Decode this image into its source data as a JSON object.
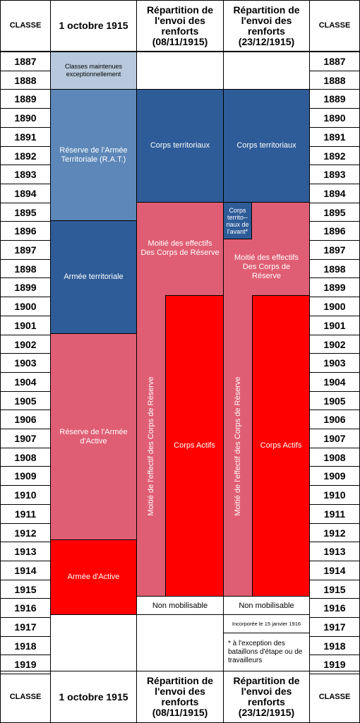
{
  "header": {
    "classe": "CLASSE",
    "date": "1 octobre 1915",
    "rep1": "Répartition de l'envoi des renforts (08/11/1915)",
    "rep2": "Répartition de l'envoi des renforts (23/12/1915)"
  },
  "years": [
    "1887",
    "1888",
    "1889",
    "1890",
    "1891",
    "1892",
    "1893",
    "1894",
    "1895",
    "1896",
    "1897",
    "1898",
    "1899",
    "1900",
    "1901",
    "1902",
    "1903",
    "1904",
    "1905",
    "1906",
    "1907",
    "1908",
    "1909",
    "1910",
    "1911",
    "1912",
    "1913",
    "1914",
    "1915",
    "1916",
    "1917",
    "1918",
    "1919"
  ],
  "col1": {
    "classes_maintenues": "Classes maintenues exceptionnellement",
    "rat": "Réserve de l'Armée Territoriale (R.A.T.)",
    "armee_territoriale": "Armée territoriale",
    "reserve_active": "Réserve de l'Armée d'Active",
    "armee_active": "Armée d'Active"
  },
  "col2": {
    "corps_territoriaux": "Corps territoriaux",
    "moitie_effectifs": "Moitié des effectifs Des Corps de Réserve",
    "moitie_effectif_vertical": "Moitié de l'effectif des Corps de Réserve",
    "corps_actifs": "Corps Actifs",
    "non_mobilisable": "Non mobilisable"
  },
  "col3": {
    "corps_territoriaux": "Corps territoriaux",
    "corps_territoriaux_avant": "Corps territo--riaux de l'avant*",
    "moitie_effectifs": "Moitié des effectifs Des Corps de Réserve",
    "moitie_effectif_vertical": "Moitié de l'effectif des Corps de Réserve",
    "corps_actifs": "Corps Actifs",
    "non_mobilisable": "Non mobilisable",
    "incorporee": "Incorporée le 15 janvier 1916",
    "exception_note": "* à l'exception des bataillons d'étape ou de travailleurs"
  },
  "colors": {
    "gray": "#b8c9dd",
    "light_blue": "#5c87b8",
    "dark_blue": "#2e5c98",
    "pink": "#e05e73",
    "red": "#ff0000"
  }
}
